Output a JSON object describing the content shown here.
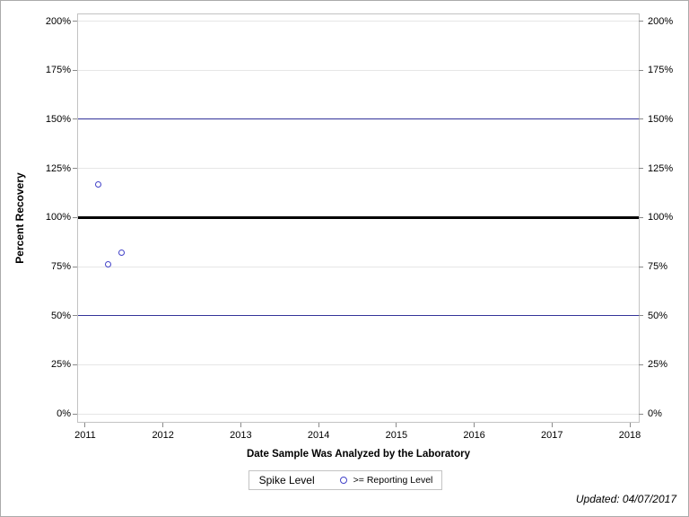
{
  "chart_data": {
    "type": "scatter",
    "title": "",
    "xlabel": "Date Sample Was Analyzed by the Laboratory",
    "ylabel": "Percent Recovery",
    "x_ticks": [
      2011,
      2012,
      2013,
      2014,
      2015,
      2016,
      2017,
      2018
    ],
    "y_ticks": [
      0,
      25,
      50,
      75,
      100,
      125,
      150,
      175,
      200
    ],
    "y_tick_suffix": "%",
    "xlim": [
      2010.908,
      2018.115
    ],
    "ylim": [
      -4.1,
      203.5
    ],
    "grid": "horizontal-only",
    "legend_position": "bottom-center",
    "points": [
      {
        "x": 2011.17,
        "y": 117
      },
      {
        "x": 2011.3,
        "y": 76
      },
      {
        "x": 2011.47,
        "y": 82
      }
    ],
    "ref_lines": [
      {
        "y": 50,
        "color": "#333399",
        "thickness": 1
      },
      {
        "y": 150,
        "color": "#333399",
        "thickness": 1
      },
      {
        "y": 100,
        "color": "#000000",
        "thickness": 3
      }
    ],
    "marker": {
      "shape": "open-circle",
      "color": "#4242c8",
      "size": 7,
      "stroke": 1.5
    },
    "colors": {
      "grid": "#e6e6e6",
      "frame": "#c3c3c3",
      "tick": "#8a8a8a",
      "text": "#000000"
    }
  },
  "legend": {
    "title": "Spike Level",
    "entries": [
      {
        "marker": "open-circle",
        "label": ">= Reporting Level"
      }
    ]
  },
  "footer": {
    "updated_label": "Updated: 04/07/2017"
  }
}
